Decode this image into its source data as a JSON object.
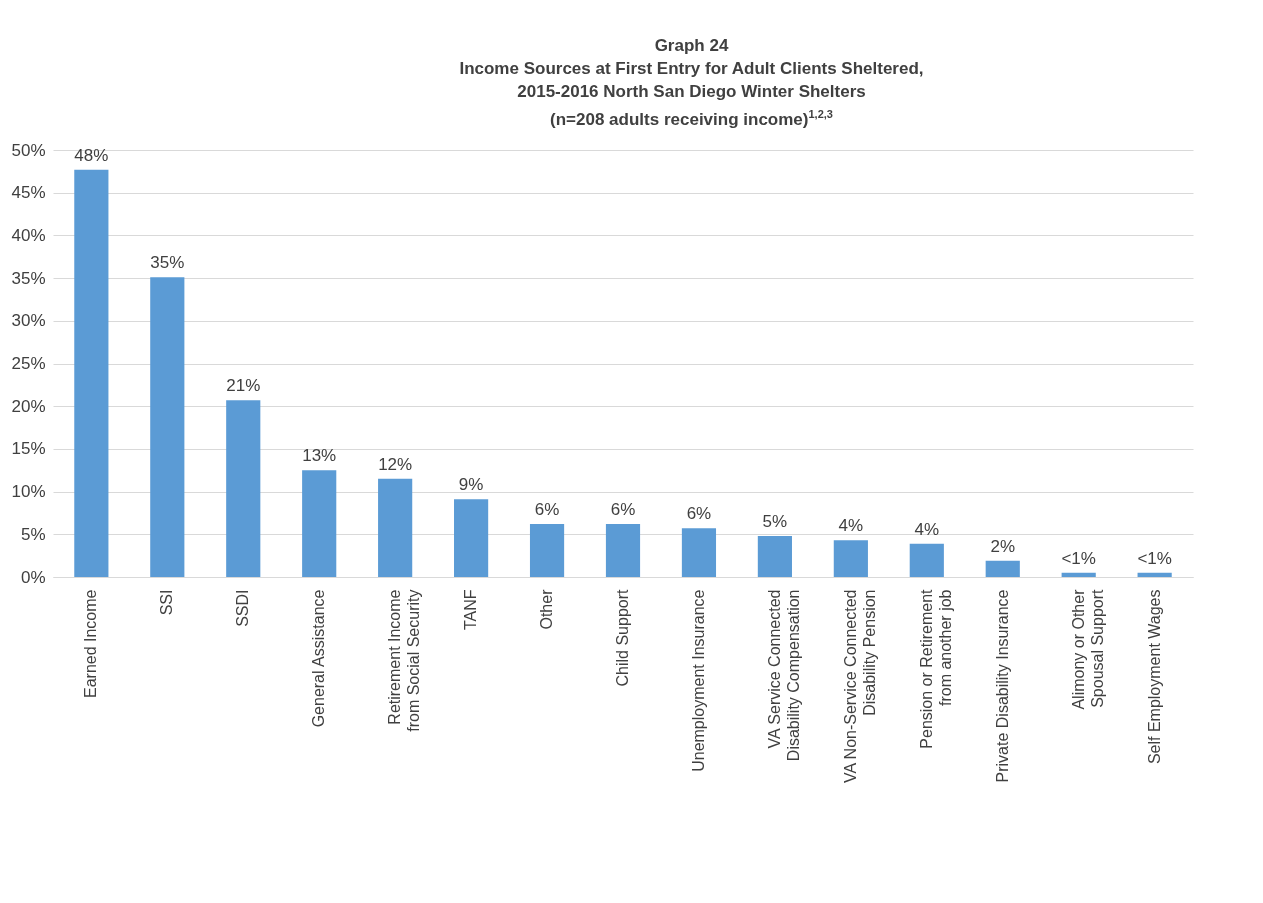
{
  "chart_data": {
    "type": "bar",
    "title": "Graph 24\nIncome Sources at First Entry for Adult Clients Sheltered,\n2015-2016 North San Diego Winter Shelters\n(n=208 adults receiving income)$^{1,2,3}$",
    "categories": [
      "Earned Income",
      "SSI",
      "SSDI",
      "General Assistance",
      "Retirement Income from Social Security",
      "TANF",
      "Other",
      "Child Support",
      "Unemployment Insurance",
      "VA Service Connected Disability Compensation",
      "VA Non-Service Connected Disability Pension",
      "Pension or Retirement from another job",
      "Private Disability Insurance",
      "Alimony or Other Spousal Support",
      "Self Employment Wages"
    ],
    "values": [
      47.7,
      35.1,
      20.7,
      12.5,
      11.5,
      9.1,
      6.2,
      6.2,
      5.7,
      4.8,
      4.3,
      3.9,
      1.9,
      0.5,
      0.5
    ],
    "value_labels": [
      "48%",
      "35%",
      "21%",
      "13%",
      "12%",
      "9%",
      "6%",
      "6%",
      "6%",
      "5%",
      "4%",
      "4%",
      "2%",
      "<1%",
      "<1%"
    ],
    "color": "#5b9bd5",
    "ylim": [
      0,
      50
    ],
    "yticks": [
      {
        "value": 0,
        "label": "0%"
      },
      {
        "value": 5,
        "label": "5%"
      },
      {
        "value": 10,
        "label": "10%"
      },
      {
        "value": 15,
        "label": "15%"
      },
      {
        "value": 20,
        "label": "20%"
      },
      {
        "value": 25,
        "label": "25%"
      },
      {
        "value": 30,
        "label": "30%"
      },
      {
        "value": 35,
        "label": "35%"
      },
      {
        "value": 40,
        "label": "40%"
      },
      {
        "value": 45,
        "label": "45%"
      },
      {
        "value": 50,
        "label": "50%"
      }
    ],
    "grid": "y"
  }
}
